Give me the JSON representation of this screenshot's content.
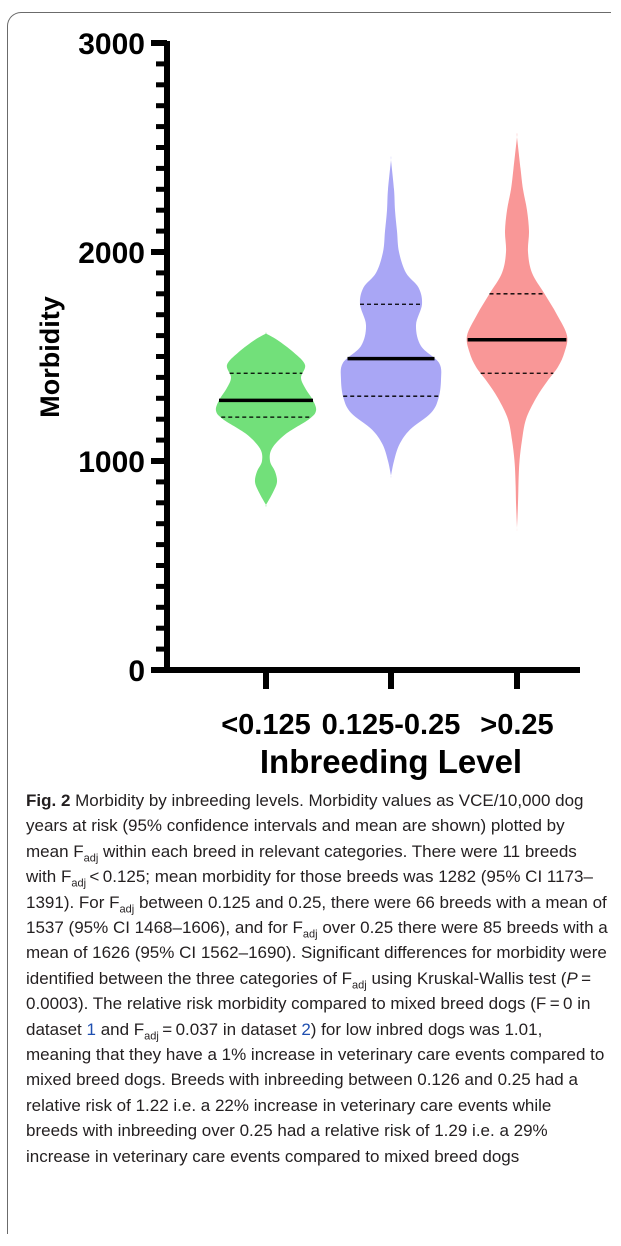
{
  "chart_data": {
    "type": "violin",
    "ylabel": "Morbidity",
    "xlabel": "Inbreeding Level",
    "ylim": [
      0,
      3000
    ],
    "yticks": [
      "0",
      "1000",
      "2000",
      "3000"
    ],
    "categories": [
      "<0.125",
      "0.125-0.25",
      ">0.25"
    ],
    "colors": [
      "#72e07a",
      "#a9a6f5",
      "#f99797"
    ],
    "series": [
      {
        "category": "<0.125",
        "color": "#72e07a",
        "range": [
          790,
          1610
        ],
        "mean": 1290,
        "quartiles": [
          1210,
          1420
        ],
        "profile": [
          [
            790,
            0
          ],
          [
            850,
            0.14
          ],
          [
            900,
            0.22
          ],
          [
            950,
            0.18
          ],
          [
            1000,
            0.08
          ],
          [
            1060,
            0.12
          ],
          [
            1130,
            0.4
          ],
          [
            1200,
            0.86
          ],
          [
            1240,
            1.0
          ],
          [
            1290,
            0.94
          ],
          [
            1350,
            0.78
          ],
          [
            1400,
            0.7
          ],
          [
            1460,
            0.78
          ],
          [
            1520,
            0.55
          ],
          [
            1580,
            0.22
          ],
          [
            1610,
            0
          ]
        ]
      },
      {
        "category": "0.125-0.25",
        "color": "#a9a6f5",
        "range": [
          930,
          2440
        ],
        "mean": 1490,
        "quartiles": [
          1310,
          1750
        ],
        "profile": [
          [
            930,
            0
          ],
          [
            1000,
            0.06
          ],
          [
            1080,
            0.17
          ],
          [
            1150,
            0.38
          ],
          [
            1230,
            0.8
          ],
          [
            1300,
            0.95
          ],
          [
            1390,
            1.0
          ],
          [
            1470,
            0.96
          ],
          [
            1550,
            0.6
          ],
          [
            1650,
            0.5
          ],
          [
            1750,
            0.62
          ],
          [
            1830,
            0.55
          ],
          [
            1900,
            0.3
          ],
          [
            2000,
            0.16
          ],
          [
            2100,
            0.12
          ],
          [
            2200,
            0.08
          ],
          [
            2300,
            0.06
          ],
          [
            2440,
            0
          ]
        ]
      },
      {
        "category": ">0.25",
        "color": "#f99797",
        "range": [
          680,
          2550
        ],
        "mean": 1580,
        "quartiles": [
          1420,
          1800
        ],
        "profile": [
          [
            680,
            0
          ],
          [
            800,
            0.02
          ],
          [
            900,
            0.03
          ],
          [
            1000,
            0.05
          ],
          [
            1100,
            0.1
          ],
          [
            1200,
            0.18
          ],
          [
            1300,
            0.38
          ],
          [
            1380,
            0.6
          ],
          [
            1450,
            0.82
          ],
          [
            1520,
            0.95
          ],
          [
            1600,
            1.0
          ],
          [
            1700,
            0.8
          ],
          [
            1800,
            0.55
          ],
          [
            1900,
            0.3
          ],
          [
            2000,
            0.22
          ],
          [
            2100,
            0.24
          ],
          [
            2200,
            0.2
          ],
          [
            2300,
            0.12
          ],
          [
            2400,
            0.07
          ],
          [
            2550,
            0
          ]
        ]
      }
    ]
  },
  "caption": {
    "label": "Fig. 2",
    "parts": [
      {
        "t": "  Morbidity by inbreeding levels. Morbidity values as VCE/10,000 dog years at risk (95% confidence intervals and mean are shown) plotted by mean F"
      },
      {
        "t": "adj",
        "sub": true
      },
      {
        "t": " within each breed in relevant categories. There were 11 breeds with F"
      },
      {
        "t": "adj",
        "sub": true
      },
      {
        "t": " < 0.125; mean morbidity for those breeds was 1282 (95% CI 1173–1391). For F"
      },
      {
        "t": "adj",
        "sub": true
      },
      {
        "t": " between 0.125 and 0.25, there were 66 breeds with a mean of 1537 (95% CI 1468–1606), and for F"
      },
      {
        "t": "adj",
        "sub": true
      },
      {
        "t": " over 0.25 there were 85 breeds with a mean of 1626 (95% CI 1562–1690). Significant differences for morbidity were identified between the three categories of F"
      },
      {
        "t": "adj",
        "sub": true
      },
      {
        "t": " using Kruskal-Wallis test ("
      },
      {
        "t": "P",
        "italic": true
      },
      {
        "t": " = 0.0003). The relative risk morbidity compared to mixed breed dogs (F = 0 in dataset "
      },
      {
        "t": "1",
        "link": true
      },
      {
        "t": " and F"
      },
      {
        "t": "adj",
        "sub": true
      },
      {
        "t": " = 0.037 in dataset "
      },
      {
        "t": "2",
        "link": true
      },
      {
        "t": ") for low inbred dogs was 1.01, meaning that they have a 1% increase in veterinary care events compared to mixed breed dogs. Breeds with inbreeding between 0.126 and 0.25 had a relative risk of 1.22 i.e. a 22% increase in veterinary care events while breeds with inbreeding over 0.25 had a relative risk of 1.29 i.e. a 29% increase in veterinary care events compared to mixed breed dogs"
      }
    ]
  }
}
